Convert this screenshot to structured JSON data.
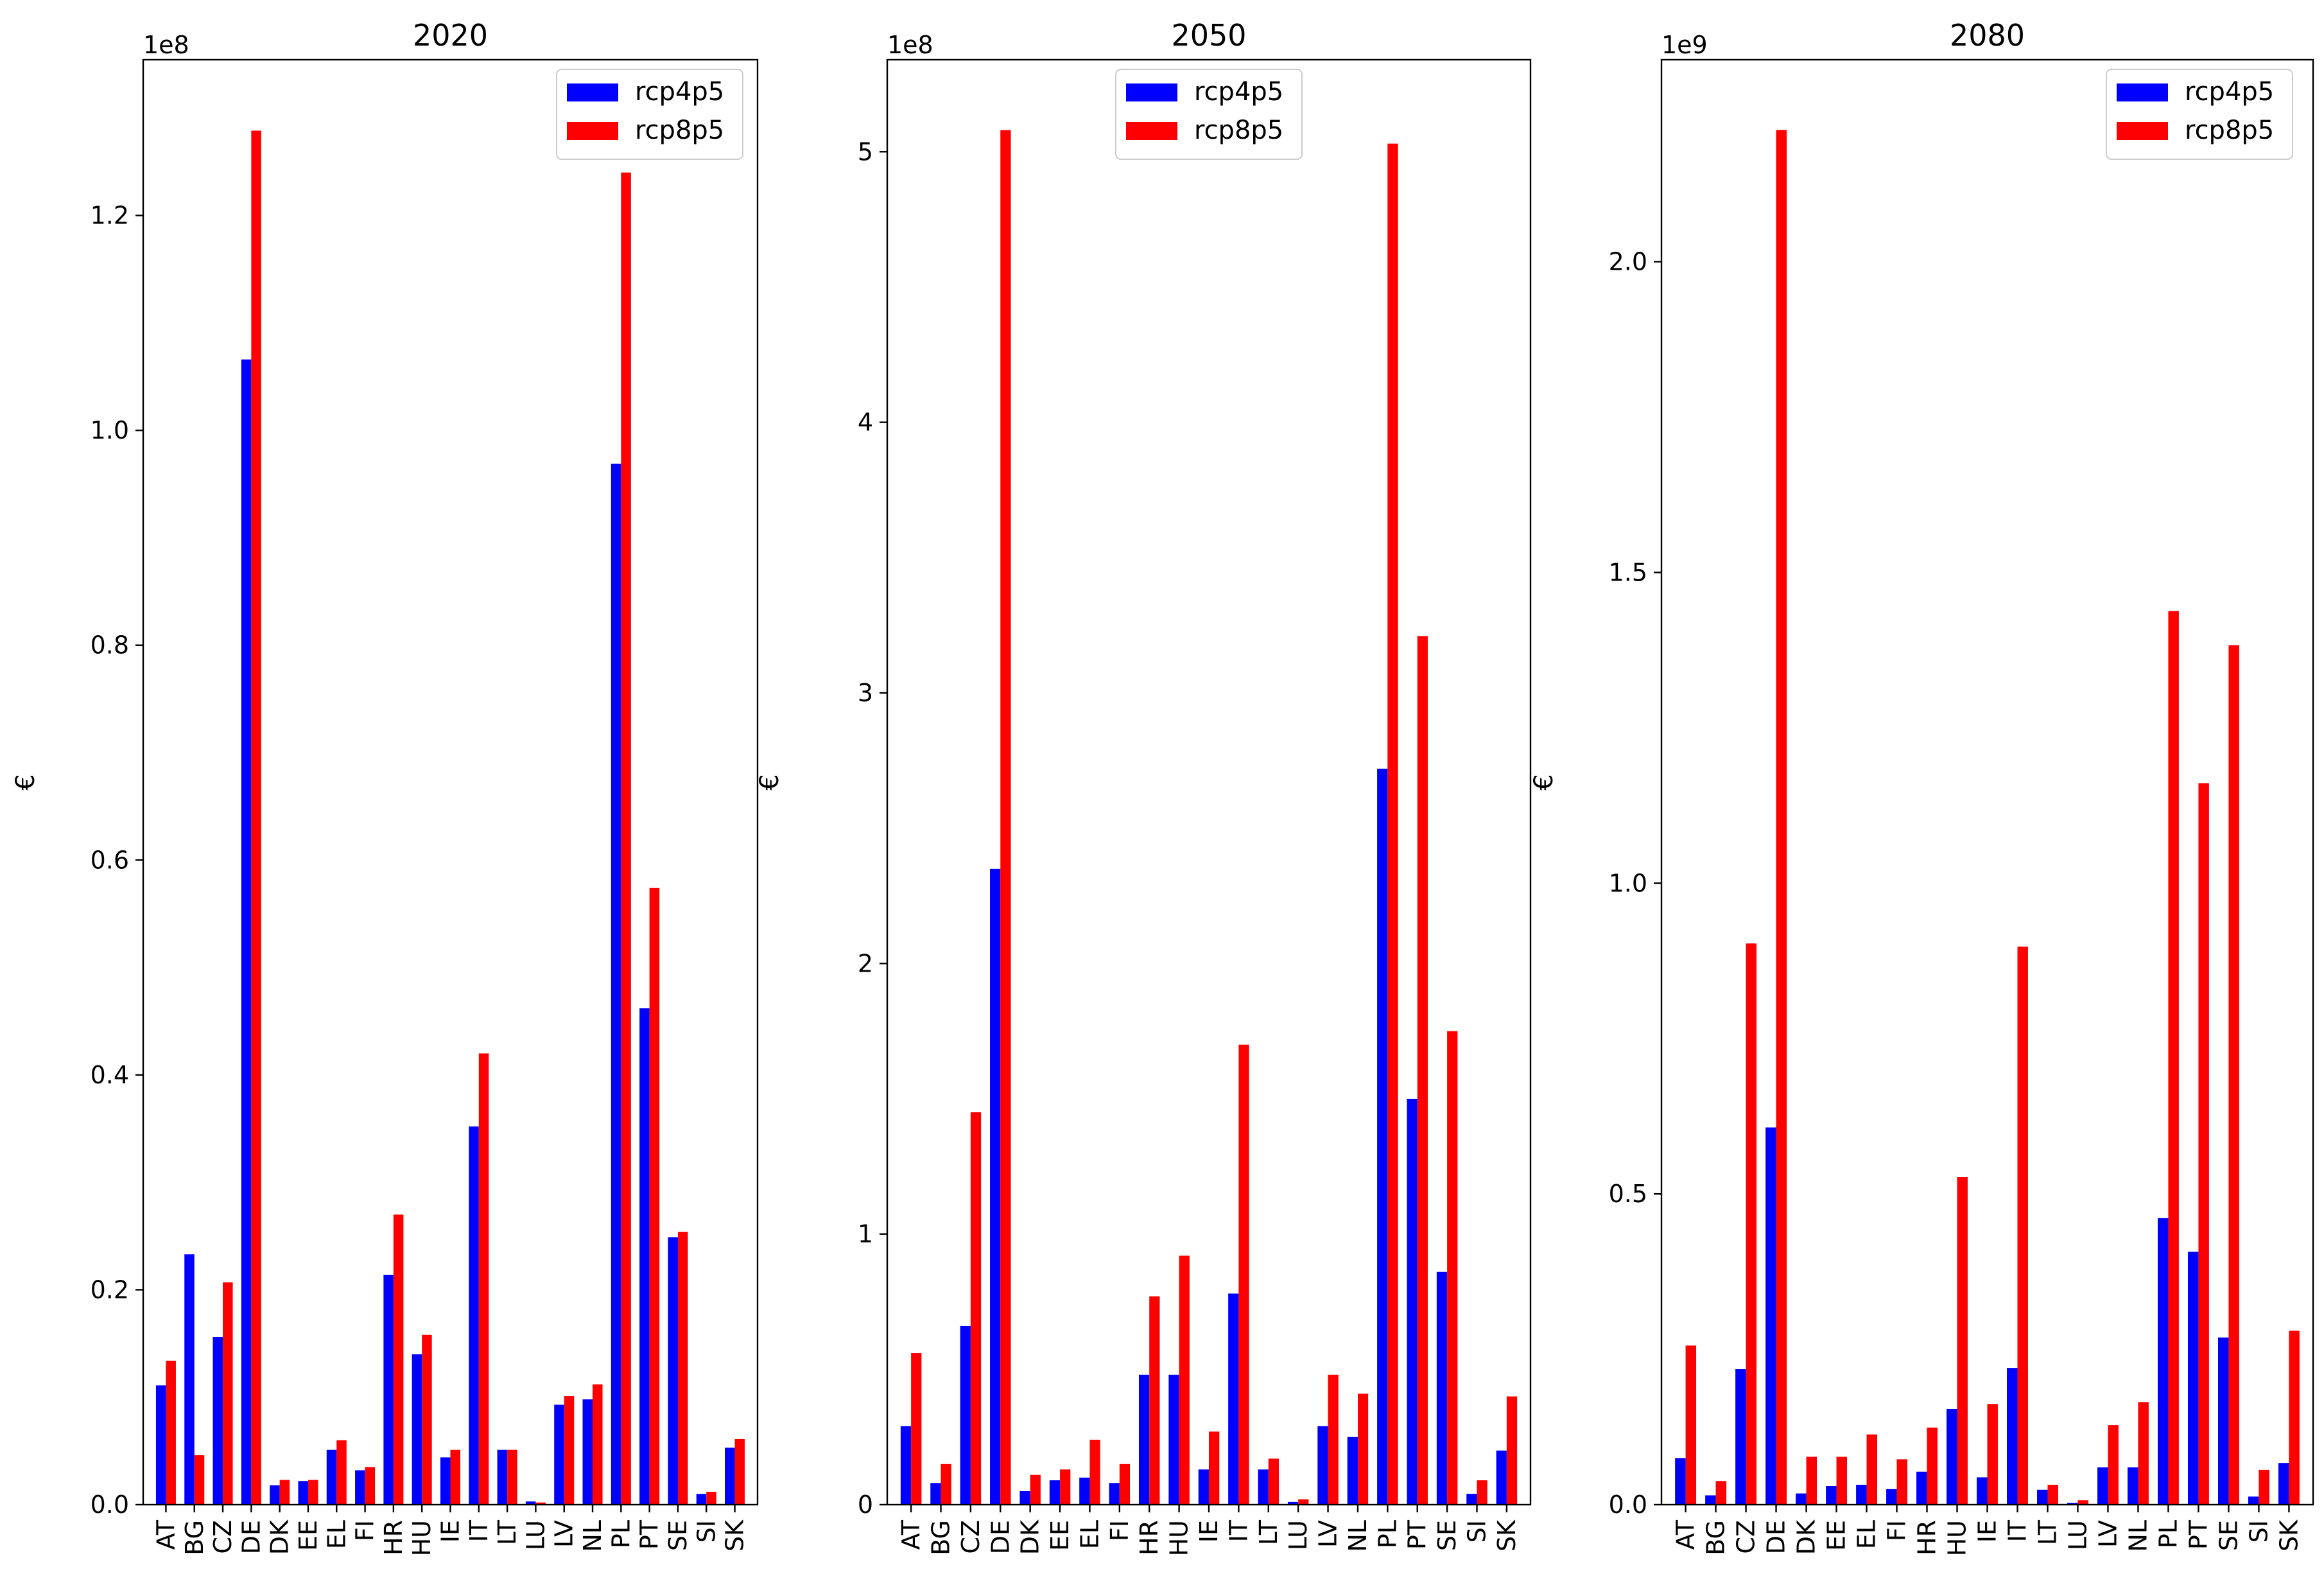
{
  "chart_data": [
    {
      "type": "bar",
      "title": "2020",
      "ylabel": "€",
      "xlabel": "",
      "scale_label": "1e8",
      "scale": 100000000,
      "ylim": [
        0,
        1.345
      ],
      "yticks": [
        0.0,
        0.2,
        0.4,
        0.6,
        0.8,
        1.0,
        1.2
      ],
      "ytick_labels": [
        "0.0",
        "0.2",
        "0.4",
        "0.6",
        "0.8",
        "1.0",
        "1.2"
      ],
      "legend_position": "top-right",
      "categories": [
        "AT",
        "BG",
        "CZ",
        "DE",
        "DK",
        "EE",
        "EL",
        "FI",
        "HR",
        "HU",
        "IE",
        "IT",
        "LT",
        "LU",
        "LV",
        "NL",
        "PL",
        "PT",
        "SE",
        "SI",
        "SK"
      ],
      "series": [
        {
          "name": "rcp4p5",
          "color": "#0000ff",
          "values": [
            0.111,
            0.233,
            0.156,
            1.066,
            0.018,
            0.022,
            0.051,
            0.032,
            0.214,
            0.14,
            0.044,
            0.352,
            0.051,
            0.003,
            0.093,
            0.098,
            0.969,
            0.462,
            0.249,
            0.01,
            0.053
          ]
        },
        {
          "name": "rcp8p5",
          "color": "#ff0000",
          "values": [
            0.134,
            0.046,
            0.207,
            1.279,
            0.023,
            0.023,
            0.06,
            0.035,
            0.27,
            0.158,
            0.051,
            0.42,
            0.051,
            0.002,
            0.101,
            0.112,
            1.24,
            0.574,
            0.254,
            0.012,
            0.061
          ]
        }
      ]
    },
    {
      "type": "bar",
      "title": "2050",
      "ylabel": "€",
      "xlabel": "",
      "scale_label": "1e8",
      "scale": 100000000,
      "ylim": [
        0,
        5.34
      ],
      "yticks": [
        0,
        1,
        2,
        3,
        4,
        5
      ],
      "ytick_labels": [
        "0",
        "1",
        "2",
        "3",
        "4",
        "5"
      ],
      "legend_position": "top-center",
      "categories": [
        "AT",
        "BG",
        "CZ",
        "DE",
        "DK",
        "EE",
        "EL",
        "FI",
        "HR",
        "HU",
        "IE",
        "IT",
        "LT",
        "LU",
        "LV",
        "NL",
        "PL",
        "PT",
        "SE",
        "SI",
        "SK"
      ],
      "series": [
        {
          "name": "rcp4p5",
          "color": "#0000ff",
          "values": [
            0.29,
            0.08,
            0.66,
            2.35,
            0.05,
            0.09,
            0.1,
            0.08,
            0.48,
            0.48,
            0.13,
            0.78,
            0.13,
            0.01,
            0.29,
            0.25,
            2.72,
            1.5,
            0.86,
            0.04,
            0.2
          ]
        },
        {
          "name": "rcp8p5",
          "color": "#ff0000",
          "values": [
            0.56,
            0.15,
            1.45,
            5.08,
            0.11,
            0.13,
            0.24,
            0.15,
            0.77,
            0.92,
            0.27,
            1.7,
            0.17,
            0.02,
            0.48,
            0.41,
            5.03,
            3.21,
            1.75,
            0.09,
            0.4
          ]
        }
      ]
    },
    {
      "type": "bar",
      "title": "2080",
      "ylabel": "€",
      "xlabel": "",
      "scale_label": "1e9",
      "scale": 1000000000,
      "ylim": [
        0,
        2.325
      ],
      "yticks": [
        0.0,
        0.5,
        1.0,
        1.5,
        2.0
      ],
      "ytick_labels": [
        "0.0",
        "0.5",
        "1.0",
        "1.5",
        "2.0"
      ],
      "legend_position": "top-right",
      "categories": [
        "AT",
        "BG",
        "CZ",
        "DE",
        "DK",
        "EE",
        "EL",
        "FI",
        "HR",
        "HU",
        "IE",
        "IT",
        "LT",
        "LU",
        "LV",
        "NL",
        "PL",
        "PT",
        "SE",
        "SI",
        "SK"
      ],
      "series": [
        {
          "name": "rcp4p5",
          "color": "#0000ff",
          "values": [
            0.075,
            0.015,
            0.218,
            0.607,
            0.018,
            0.03,
            0.032,
            0.025,
            0.053,
            0.154,
            0.044,
            0.22,
            0.024,
            0.003,
            0.06,
            0.06,
            0.461,
            0.407,
            0.269,
            0.013,
            0.067
          ]
        },
        {
          "name": "rcp8p5",
          "color": "#ff0000",
          "values": [
            0.256,
            0.038,
            0.903,
            2.212,
            0.077,
            0.077,
            0.113,
            0.073,
            0.124,
            0.527,
            0.162,
            0.898,
            0.032,
            0.007,
            0.128,
            0.165,
            1.438,
            1.161,
            1.383,
            0.056,
            0.28
          ]
        }
      ]
    }
  ]
}
